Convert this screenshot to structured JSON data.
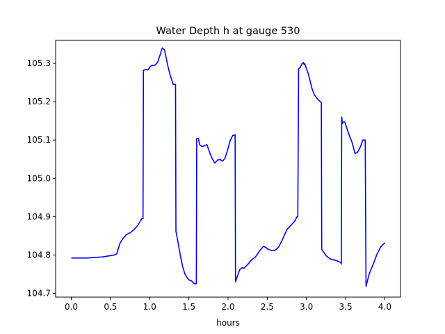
{
  "chart_data": {
    "type": "line",
    "title": "Water Depth h at gauge 530",
    "xlabel": "hours",
    "ylabel": "",
    "xlim": [
      -0.2,
      4.2
    ],
    "ylim": [
      104.69,
      105.36
    ],
    "xticks": [
      0.0,
      0.5,
      1.0,
      1.5,
      2.0,
      2.5,
      3.0,
      3.5,
      4.0
    ],
    "xtick_labels": [
      "0.0",
      "0.5",
      "1.0",
      "1.5",
      "2.0",
      "2.5",
      "3.0",
      "3.5",
      "4.0"
    ],
    "yticks": [
      104.7,
      104.8,
      104.9,
      105.0,
      105.1,
      105.2,
      105.3
    ],
    "ytick_labels": [
      "104.7",
      "104.8",
      "104.9",
      "105.0",
      "105.1",
      "105.2",
      "105.3"
    ],
    "grid": false,
    "series": [
      {
        "color": "#0000ff",
        "x": [
          0.0,
          0.2,
          0.4,
          0.55,
          0.58,
          0.62,
          0.65,
          0.7,
          0.75,
          0.8,
          0.85,
          0.9,
          0.915,
          0.92,
          0.95,
          0.98,
          1.0,
          1.03,
          1.06,
          1.1,
          1.13,
          1.16,
          1.19,
          1.21,
          1.23,
          1.26,
          1.3,
          1.33,
          1.335,
          1.36,
          1.39,
          1.42,
          1.45,
          1.48,
          1.5,
          1.53,
          1.57,
          1.595,
          1.6,
          1.62,
          1.64,
          1.67,
          1.7,
          1.73,
          1.76,
          1.8,
          1.83,
          1.87,
          1.9,
          1.93,
          1.96,
          2.0,
          2.03,
          2.06,
          2.09,
          2.095,
          2.12,
          2.15,
          2.18,
          2.2,
          2.25,
          2.3,
          2.35,
          2.4,
          2.45,
          2.48,
          2.5,
          2.55,
          2.6,
          2.65,
          2.7,
          2.75,
          2.8,
          2.85,
          2.88,
          2.89,
          2.9,
          2.92,
          2.94,
          2.96,
          2.97,
          2.98,
          3.0,
          3.02,
          3.04,
          3.07,
          3.1,
          3.15,
          3.19,
          3.195,
          3.25,
          3.3,
          3.35,
          3.4,
          3.44,
          3.445,
          3.45,
          3.46,
          3.47,
          3.49,
          3.52,
          3.55,
          3.58,
          3.62,
          3.65,
          3.68,
          3.72,
          3.75,
          3.76,
          3.765,
          3.8,
          3.85,
          3.9,
          3.95,
          4.0
        ],
        "y": [
          104.792,
          104.792,
          104.795,
          104.8,
          104.803,
          104.83,
          104.84,
          104.853,
          104.858,
          104.866,
          104.878,
          104.895,
          104.895,
          105.282,
          105.284,
          105.283,
          105.29,
          105.295,
          105.294,
          105.302,
          105.32,
          105.34,
          105.335,
          105.315,
          105.295,
          105.27,
          105.245,
          105.245,
          104.862,
          104.835,
          104.8,
          104.77,
          104.75,
          104.74,
          104.735,
          104.733,
          104.725,
          104.725,
          105.103,
          105.105,
          105.087,
          105.083,
          105.085,
          105.088,
          105.07,
          105.05,
          105.04,
          105.048,
          105.049,
          105.045,
          105.052,
          105.078,
          105.1,
          105.112,
          105.113,
          104.73,
          104.745,
          104.762,
          104.767,
          104.765,
          104.775,
          104.787,
          104.795,
          104.81,
          104.822,
          104.82,
          104.816,
          104.812,
          104.812,
          104.822,
          104.843,
          104.866,
          104.877,
          104.888,
          104.9,
          104.9,
          105.285,
          105.289,
          105.298,
          105.302,
          105.297,
          105.299,
          105.286,
          105.275,
          105.26,
          105.235,
          105.218,
          105.205,
          105.198,
          104.815,
          104.798,
          104.79,
          104.787,
          104.784,
          104.78,
          104.776,
          105.16,
          105.143,
          105.147,
          105.147,
          105.128,
          105.11,
          105.095,
          105.065,
          105.068,
          105.078,
          105.1,
          105.1,
          104.718,
          104.722,
          104.75,
          104.775,
          104.802,
          104.822,
          104.832
        ]
      }
    ]
  }
}
